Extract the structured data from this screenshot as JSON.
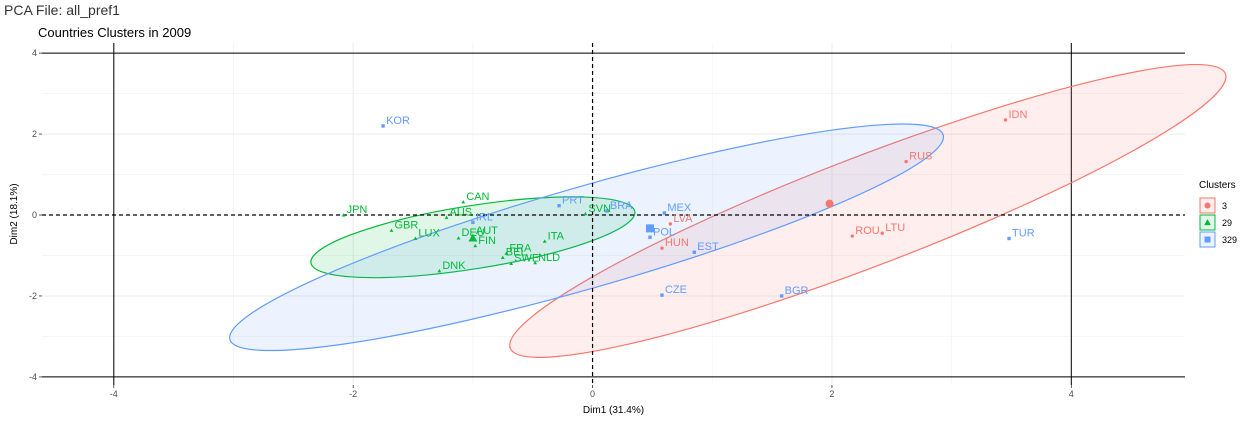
{
  "header": {
    "file_title": "PCA File: all_pref1"
  },
  "chart_data": {
    "type": "scatter",
    "title": "Countries Clusters in 2009",
    "xlabel": "Dim1 (31.4%)",
    "ylabel": "Dim2 (18.1%)",
    "xlim": [
      -4.6,
      4.95
    ],
    "ylim": [
      -4.2,
      4.25
    ],
    "xticks": [
      -4,
      -2,
      0,
      2,
      4
    ],
    "yticks": [
      -4,
      -2,
      0,
      2,
      4
    ],
    "grid": true,
    "legend_title": "Clusters",
    "legend_position": "right",
    "series": [
      {
        "name": "3",
        "color": "#F8766D",
        "marker": "circle",
        "centroid": [
          1.98,
          0.28
        ],
        "ellipse": {
          "cx": 2.3,
          "cy": 0.1,
          "rx": 3.2,
          "ry": 1.35,
          "angle_deg": -21
        },
        "points": [
          {
            "label": "IDN",
            "x": 3.45,
            "y": 2.35
          },
          {
            "label": "RUS",
            "x": 2.62,
            "y": 1.32
          },
          {
            "label": "ROU",
            "x": 2.17,
            "y": -0.52
          },
          {
            "label": "LTU",
            "x": 2.42,
            "y": -0.45
          },
          {
            "label": "LVA",
            "x": 0.65,
            "y": -0.22
          },
          {
            "label": "HUN",
            "x": 0.58,
            "y": -0.82
          }
        ]
      },
      {
        "name": "29",
        "color": "#00BA38",
        "marker": "triangle",
        "centroid": [
          -1.0,
          -0.57
        ],
        "ellipse": {
          "cx": -1.0,
          "cy": -0.55,
          "rx": 1.37,
          "ry": 0.78,
          "angle_deg": -9
        },
        "points": [
          {
            "label": "JPN",
            "x": -2.08,
            "y": 0.0
          },
          {
            "label": "GBR",
            "x": -1.68,
            "y": -0.38
          },
          {
            "label": "LUX",
            "x": -1.48,
            "y": -0.58
          },
          {
            "label": "AUS",
            "x": -1.22,
            "y": -0.06
          },
          {
            "label": "CAN",
            "x": -1.08,
            "y": 0.32
          },
          {
            "label": "DEU",
            "x": -1.12,
            "y": -0.57
          },
          {
            "label": "AUT",
            "x": -1.0,
            "y": -0.52
          },
          {
            "label": "FIN",
            "x": -0.98,
            "y": -0.76
          },
          {
            "label": "BEL",
            "x": -0.75,
            "y": -1.05
          },
          {
            "label": "FRA",
            "x": -0.72,
            "y": -0.95
          },
          {
            "label": "SWE",
            "x": -0.68,
            "y": -1.2
          },
          {
            "label": "NLD",
            "x": -0.48,
            "y": -1.18
          },
          {
            "label": "ITA",
            "x": -0.4,
            "y": -0.65
          },
          {
            "label": "DNK",
            "x": -1.28,
            "y": -1.38
          },
          {
            "label": "SVN",
            "x": -0.06,
            "y": 0.03
          }
        ]
      },
      {
        "name": "329",
        "color": "#619CFF",
        "marker": "square",
        "centroid": [
          0.48,
          -0.33
        ],
        "ellipse": {
          "cx": -0.05,
          "cy": -0.55,
          "rx": 3.1,
          "ry": 1.25,
          "angle_deg": -16
        },
        "points": [
          {
            "label": "KOR",
            "x": -1.75,
            "y": 2.2
          },
          {
            "label": "IRL",
            "x": -1.0,
            "y": -0.18
          },
          {
            "label": "PRT",
            "x": -0.28,
            "y": 0.23
          },
          {
            "label": "BRA",
            "x": 0.12,
            "y": 0.1
          },
          {
            "label": "MEX",
            "x": 0.6,
            "y": 0.05
          },
          {
            "label": "POL",
            "x": 0.48,
            "y": -0.55
          },
          {
            "label": "EST",
            "x": 0.85,
            "y": -0.92
          },
          {
            "label": "CZE",
            "x": 0.58,
            "y": -1.98
          },
          {
            "label": "BGR",
            "x": 1.58,
            "y": -2.0
          },
          {
            "label": "TUR",
            "x": 3.48,
            "y": -0.58
          }
        ]
      }
    ]
  }
}
